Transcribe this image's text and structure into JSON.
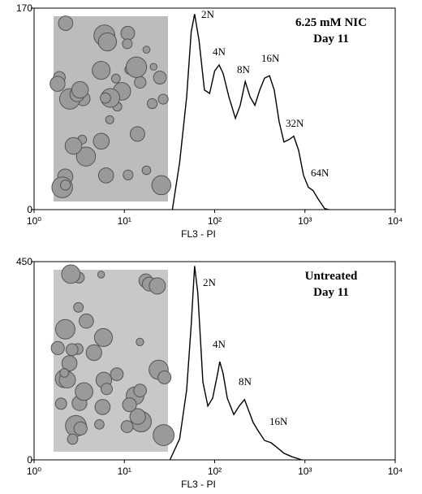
{
  "chart_data": [
    {
      "type": "line",
      "title": "6.25 mM NIC",
      "subtitle": "Day 11",
      "x_label": "FL3 - PI",
      "log_x": true,
      "color": "#000000",
      "xlim": [
        1,
        10000
      ],
      "xticks": [
        {
          "value": 1,
          "label": "10⁰"
        },
        {
          "value": 10,
          "label": "10¹"
        },
        {
          "value": 100,
          "label": "10²"
        },
        {
          "value": 1000,
          "label": "10³"
        },
        {
          "value": 10000,
          "label": "10⁴"
        }
      ],
      "ylim": [
        0,
        170
      ],
      "yticks": [
        0,
        170
      ],
      "x": [
        34,
        41,
        49,
        55,
        60,
        67,
        77,
        88,
        100,
        112,
        124,
        144,
        170,
        192,
        218,
        247,
        279,
        316,
        357,
        405,
        457,
        518,
        586,
        664,
        752,
        851,
        964,
        1090,
        1235,
        1400,
        1650,
        1830
      ],
      "values": [
        0,
        40,
        95,
        150,
        165,
        143,
        101,
        98,
        117,
        122,
        115,
        95,
        77,
        88,
        108,
        95,
        88,
        101,
        111,
        113,
        101,
        74,
        57,
        59,
        62,
        50,
        29,
        19,
        16,
        9,
        1,
        0
      ],
      "annotations": [
        "2N",
        "4N",
        "8N",
        "16N",
        "32N",
        "64N"
      ]
    },
    {
      "type": "line",
      "title": "Untreated",
      "subtitle": "Day 11",
      "x_label": "FL3 - PI",
      "log_x": true,
      "color": "#000000",
      "xlim": [
        1,
        10000
      ],
      "xticks": [
        {
          "value": 1,
          "label": "10⁰"
        },
        {
          "value": 10,
          "label": "10¹"
        },
        {
          "value": 100,
          "label": "10²"
        },
        {
          "value": 1000,
          "label": "10³"
        },
        {
          "value": 10000,
          "label": "10⁴"
        }
      ],
      "ylim": [
        0,
        450
      ],
      "yticks": [
        0,
        450
      ],
      "x": [
        32,
        41,
        49,
        55,
        60,
        65,
        74,
        84,
        95,
        108,
        114,
        124,
        138,
        163,
        187,
        214,
        237,
        267,
        303,
        357,
        421,
        478,
        586,
        720,
        925
      ],
      "values": [
        0,
        48,
        159,
        306,
        440,
        380,
        177,
        122,
        140,
        196,
        223,
        196,
        140,
        103,
        122,
        137,
        113,
        85,
        66,
        44,
        39,
        30,
        15,
        7,
        0
      ],
      "annotations": [
        "2N",
        "4N",
        "8N",
        "16N"
      ]
    }
  ]
}
